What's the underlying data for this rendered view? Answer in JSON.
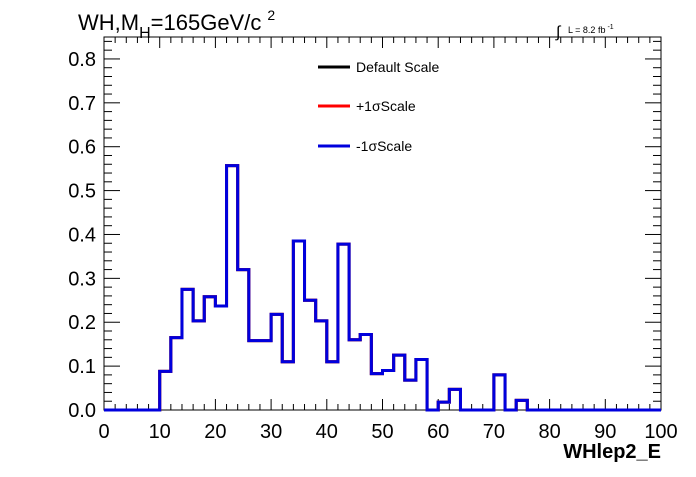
{
  "chart_data": {
    "type": "histogram",
    "title_main": "WH,M",
    "title_sub": "H",
    "title_rest": "=165GeV/c",
    "title_sup": "2",
    "lumi_label": "L = 8.2 fb",
    "lumi_sup": "-1",
    "xlabel": "WHlep2_E",
    "xlim": [
      0,
      100
    ],
    "ylim": [
      0,
      0.85
    ],
    "x_ticks": [
      "0",
      "10",
      "20",
      "30",
      "40",
      "50",
      "60",
      "70",
      "80",
      "90",
      "100"
    ],
    "y_ticks": [
      "0.0",
      "0.1",
      "0.2",
      "0.3",
      "0.4",
      "0.5",
      "0.6",
      "0.7",
      "0.8"
    ],
    "bin_width": 2,
    "bin_values": [
      0,
      0,
      0,
      0,
      0,
      0.088,
      0.165,
      0.275,
      0.203,
      0.258,
      0.237,
      0.557,
      0.32,
      0.158,
      0.158,
      0.218,
      0.11,
      0.385,
      0.25,
      0.203,
      0.11,
      0.378,
      0.16,
      0.172,
      0.083,
      0.09,
      0.125,
      0.068,
      0.115,
      0.0,
      0.018,
      0.047,
      0.0,
      0.0,
      0.0,
      0.08,
      0.0,
      0.022,
      0,
      0,
      0,
      0,
      0,
      0,
      0,
      0,
      0,
      0,
      0,
      0
    ],
    "series": [
      {
        "name": "Default Scale",
        "color": "#000000"
      },
      {
        "name": "+1σScale",
        "color": "#ff0000"
      },
      {
        "name": "-1σScale",
        "color": "#0000dd"
      }
    ],
    "legend_position": "top-center"
  }
}
